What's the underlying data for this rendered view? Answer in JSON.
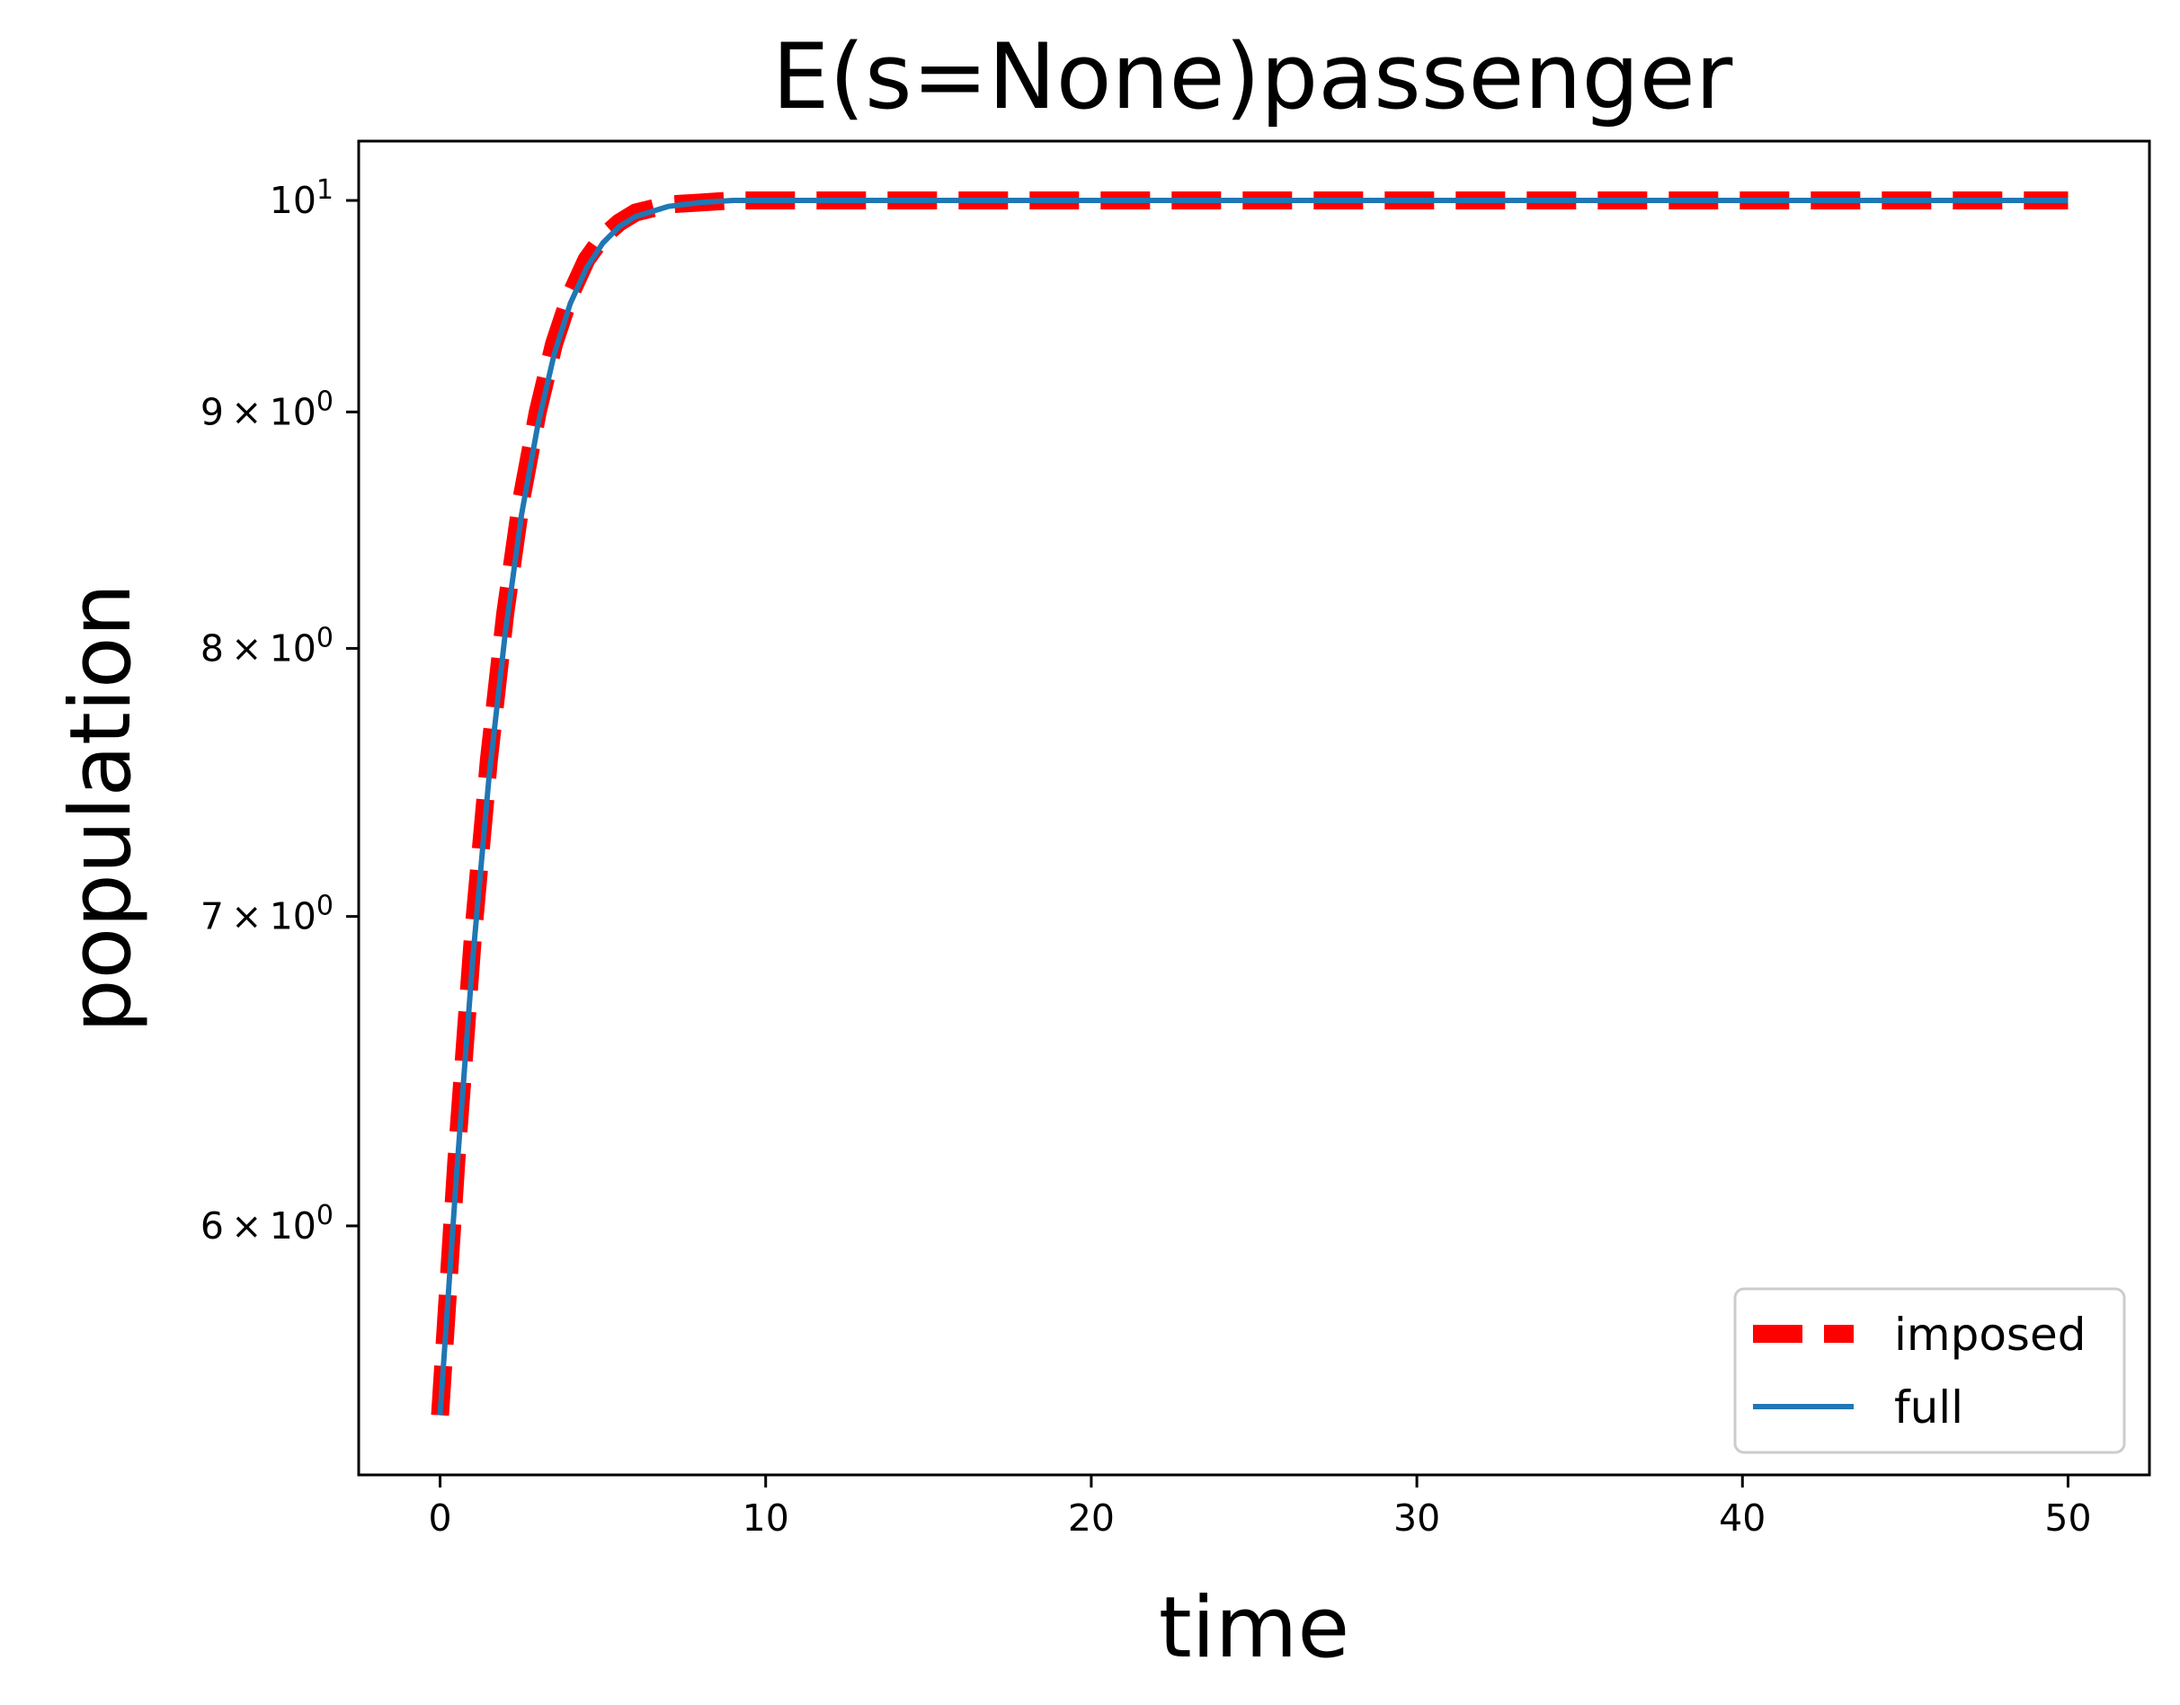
{
  "chart_data": {
    "type": "line",
    "title": "E(s=None)passenger",
    "xlabel": "time",
    "ylabel": "population",
    "xlim": [
      -2.5,
      52.5
    ],
    "ylim": [
      5.3,
      10.3
    ],
    "yscale": "log",
    "grid": false,
    "legend_position": "lower-right",
    "x_ticks": [
      {
        "value": 0,
        "label": "0"
      },
      {
        "value": 10,
        "label": "10"
      },
      {
        "value": 20,
        "label": "20"
      },
      {
        "value": 30,
        "label": "30"
      },
      {
        "value": 40,
        "label": "40"
      },
      {
        "value": 50,
        "label": "50"
      }
    ],
    "y_ticks": [
      {
        "value": 10,
        "mantissa": "",
        "exponent": "1"
      },
      {
        "value": 9,
        "mantissa": "9",
        "exponent": "0"
      },
      {
        "value": 8,
        "mantissa": "8",
        "exponent": "0"
      },
      {
        "value": 7,
        "mantissa": "7",
        "exponent": "0"
      },
      {
        "value": 6,
        "mantissa": "6",
        "exponent": "0"
      }
    ],
    "x": [
      0,
      0.5,
      1,
      1.5,
      2,
      2.5,
      3,
      3.5,
      4,
      4.5,
      5,
      5.5,
      6,
      7,
      8,
      9,
      10,
      12,
      15,
      20,
      25,
      30,
      35,
      40,
      45,
      50
    ],
    "series": [
      {
        "name": "imposed",
        "color": "#ff0000",
        "style": "dashed",
        "values": [
          5.46,
          6.2,
          6.92,
          7.57,
          8.14,
          8.62,
          9.0,
          9.31,
          9.54,
          9.71,
          9.82,
          9.89,
          9.94,
          9.98,
          9.99,
          10.0,
          10.0,
          10.0,
          10.0,
          10.0,
          10.0,
          10.0,
          10.0,
          10.0,
          10.0,
          10.0
        ]
      },
      {
        "name": "full",
        "color": "#1f77b4",
        "style": "solid",
        "values": [
          5.46,
          6.15,
          6.85,
          7.5,
          8.06,
          8.55,
          8.94,
          9.26,
          9.5,
          9.67,
          9.79,
          9.87,
          9.92,
          9.97,
          9.99,
          10.0,
          10.0,
          10.0,
          10.0,
          10.0,
          10.0,
          10.0,
          10.0,
          10.0,
          10.0,
          10.0
        ]
      }
    ]
  }
}
